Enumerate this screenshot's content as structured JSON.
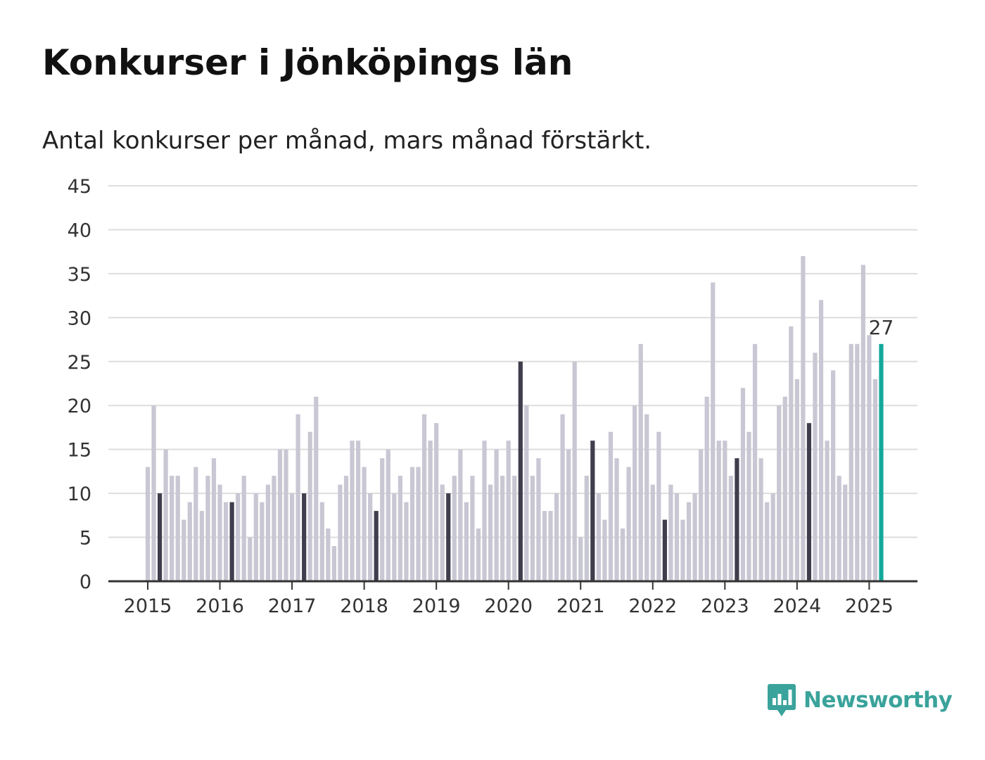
{
  "header": {
    "title": "Konkurser i Jönköpings län",
    "subtitle": "Antal konkurser per månad, mars månad förstärkt."
  },
  "brand": {
    "name": "Newsworthy",
    "color": "#3aa39b"
  },
  "colors": {
    "base_bar": "#c8c7d3",
    "highlight_bar": "#3f3e4d",
    "latest_bar": "#14a89b",
    "grid": "#dddddd",
    "axis": "#333333"
  },
  "chart_data": {
    "type": "bar",
    "highlight_month": "mars",
    "y_ticks": [
      0,
      5,
      10,
      15,
      20,
      25,
      30,
      35,
      40,
      45
    ],
    "ylim": [
      0,
      45
    ],
    "x_tick_labels": [
      "2015",
      "2016",
      "2017",
      "2018",
      "2019",
      "2020",
      "2021",
      "2022",
      "2023",
      "2024",
      "2025"
    ],
    "grid": true,
    "last_value_label": "27",
    "years": [
      {
        "year": "2015",
        "values": [
          13,
          20,
          10,
          15,
          12,
          12,
          7,
          9,
          13,
          8,
          12,
          14
        ]
      },
      {
        "year": "2016",
        "values": [
          11,
          9,
          9,
          10,
          12,
          5,
          10,
          9,
          11,
          12,
          15,
          15
        ]
      },
      {
        "year": "2017",
        "values": [
          10,
          19,
          10,
          17,
          21,
          9,
          6,
          4,
          11,
          12,
          16,
          16
        ]
      },
      {
        "year": "2018",
        "values": [
          13,
          10,
          8,
          14,
          15,
          10,
          12,
          9,
          13,
          13,
          19,
          16
        ]
      },
      {
        "year": "2019",
        "values": [
          18,
          11,
          10,
          12,
          15,
          9,
          12,
          6,
          16,
          11,
          15,
          12
        ]
      },
      {
        "year": "2020",
        "values": [
          16,
          12,
          25,
          20,
          12,
          14,
          8,
          8,
          10,
          19,
          15,
          25
        ]
      },
      {
        "year": "2021",
        "values": [
          5,
          12,
          16,
          10,
          7,
          17,
          14,
          6,
          13,
          20,
          27,
          19
        ]
      },
      {
        "year": "2022",
        "values": [
          11,
          17,
          7,
          11,
          10,
          7,
          9,
          10,
          15,
          21,
          34,
          16
        ]
      },
      {
        "year": "2023",
        "values": [
          16,
          12,
          14,
          22,
          17,
          27,
          14,
          9,
          10,
          20,
          21,
          29
        ]
      },
      {
        "year": "2024",
        "values": [
          23,
          37,
          18,
          26,
          32,
          16,
          24,
          12,
          11,
          27,
          27,
          36
        ]
      },
      {
        "year": "2025",
        "values": [
          28,
          23,
          27
        ]
      }
    ]
  }
}
